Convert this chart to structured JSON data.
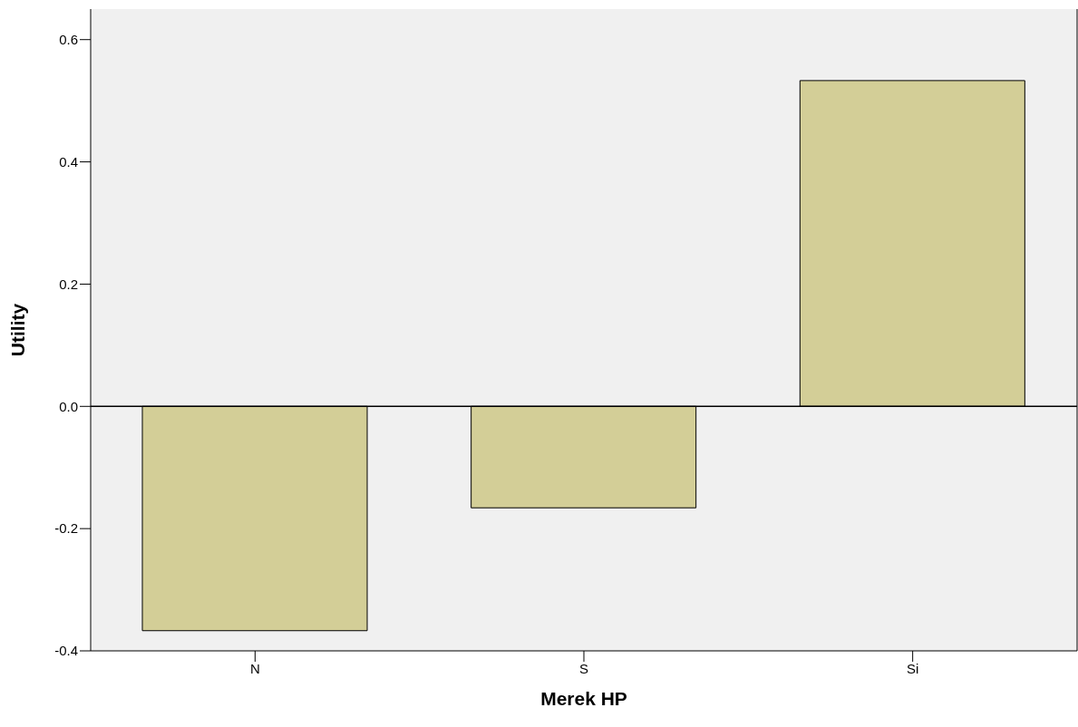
{
  "chart_data": {
    "type": "bar",
    "xlabel": "Merek HP",
    "ylabel": "Utility",
    "categories": [
      "N",
      "S",
      "Si"
    ],
    "values": [
      -0.367,
      -0.166,
      0.533
    ],
    "color": "#d3ce97",
    "ylim": [
      -0.4,
      0.65
    ],
    "yticks": [
      -0.4,
      -0.2,
      {
        "value": 0,
        "label": "0.0"
      },
      0.2,
      0.4,
      0.6
    ],
    "ref_lines": [
      {
        "axis": "y",
        "value": 0
      }
    ]
  }
}
